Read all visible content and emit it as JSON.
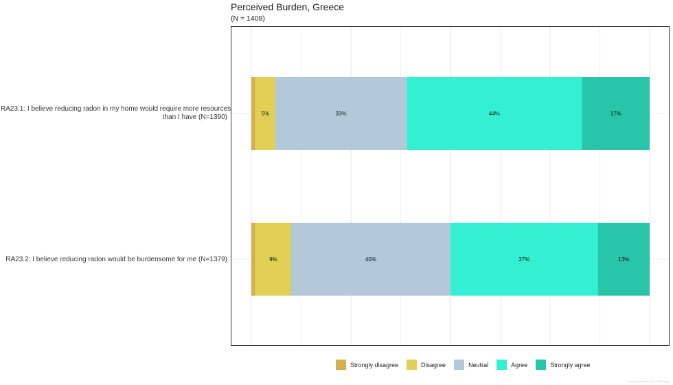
{
  "chart_data": {
    "type": "bar",
    "orientation": "horizontal",
    "stacked": true,
    "title": "Perceived Burden, Greece",
    "subtitle": "(N = 1408)",
    "categories": [
      [
        "RA23.1: I believe reducing radon in my home would require more resources",
        "than I have (N=1390)"
      ],
      [
        "RA23.2: I believe reducing radon would be burdensome for me (N=1379)"
      ]
    ],
    "series": [
      {
        "name": "Strongly disagree",
        "color": "#D4AF50",
        "values": [
          1,
          1
        ],
        "labels": [
          "",
          ""
        ]
      },
      {
        "name": "Disagree",
        "color": "#E2CF55",
        "values": [
          5,
          9
        ],
        "labels": [
          "5%",
          "9%"
        ]
      },
      {
        "name": "Neutral",
        "color": "#B3C8D8",
        "values": [
          33,
          40
        ],
        "labels": [
          "33%",
          "40%"
        ]
      },
      {
        "name": "Agree",
        "color": "#33F0D2",
        "values": [
          44,
          37
        ],
        "labels": [
          "44%",
          "37%"
        ]
      },
      {
        "name": "Strongly agree",
        "color": "#28C5AA",
        "values": [
          17,
          13
        ],
        "labels": [
          "17%",
          "13%"
        ]
      }
    ],
    "xlim": [
      0,
      100
    ],
    "grid": true,
    "legend_position": "bottom"
  },
  "watermark": "perceived_burden_GR_RA23.png"
}
